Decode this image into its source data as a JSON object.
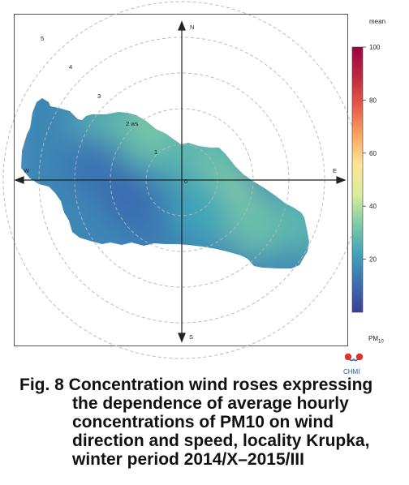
{
  "chart_data": {
    "type": "polar-heatmap",
    "panel": {
      "compass": [
        "N",
        "E",
        "S",
        "W"
      ],
      "center_label": "0",
      "speed_unit_label": "2 ws",
      "speed_rings": [
        "1",
        "2",
        "3",
        "4",
        "5"
      ],
      "ring_values": [
        1,
        2,
        3,
        4,
        5
      ]
    },
    "colorbar": {
      "title": "mean",
      "unit": "PM",
      "unit_sub": "10",
      "ticks": [
        "20",
        "40",
        "60",
        "80",
        "100"
      ],
      "tick_values": [
        20,
        40,
        60,
        80,
        100
      ],
      "range": [
        0,
        100
      ],
      "stops": [
        "#3a3f9b",
        "#3b6fb3",
        "#3fa5b8",
        "#7fcba4",
        "#d9ed9b",
        "#fee593",
        "#fba55f",
        "#e85a48",
        "#c0273f",
        "#9e0142"
      ]
    },
    "field": {
      "description": "mean PM10 concentration by wind direction (deg) and speed (m/s)",
      "points": [
        {
          "dir": 0,
          "ws": 0.0,
          "value": 14
        },
        {
          "dir": 45,
          "ws": 1.0,
          "value": 28
        },
        {
          "dir": 90,
          "ws": 1.0,
          "value": 30
        },
        {
          "dir": 120,
          "ws": 1.5,
          "value": 35
        },
        {
          "dir": 120,
          "ws": 2.5,
          "value": 30
        },
        {
          "dir": 110,
          "ws": 3.5,
          "value": 27
        },
        {
          "dir": 315,
          "ws": 1.0,
          "value": 25
        },
        {
          "dir": 330,
          "ws": 1.8,
          "value": 32
        },
        {
          "dir": 300,
          "ws": 2.5,
          "value": 28
        },
        {
          "dir": 280,
          "ws": 2.5,
          "value": 12
        },
        {
          "dir": 250,
          "ws": 1.5,
          "value": 10
        },
        {
          "dir": 210,
          "ws": 1.2,
          "value": 11
        },
        {
          "dir": 180,
          "ws": 1.0,
          "value": 13
        },
        {
          "dir": 150,
          "ws": 1.0,
          "value": 22
        }
      ]
    }
  },
  "caption": {
    "lines": [
      "Fig. 8  Concentration wind roses expressing",
      "the dependence of average hourly",
      "concentrations of PM10 on wind",
      "direction and speed, locality Krupka,",
      "winter period 2014/X–2015/III"
    ]
  },
  "logo": {
    "text": "CHMI",
    "colors": [
      "#e03030",
      "#2a6dd0"
    ]
  }
}
